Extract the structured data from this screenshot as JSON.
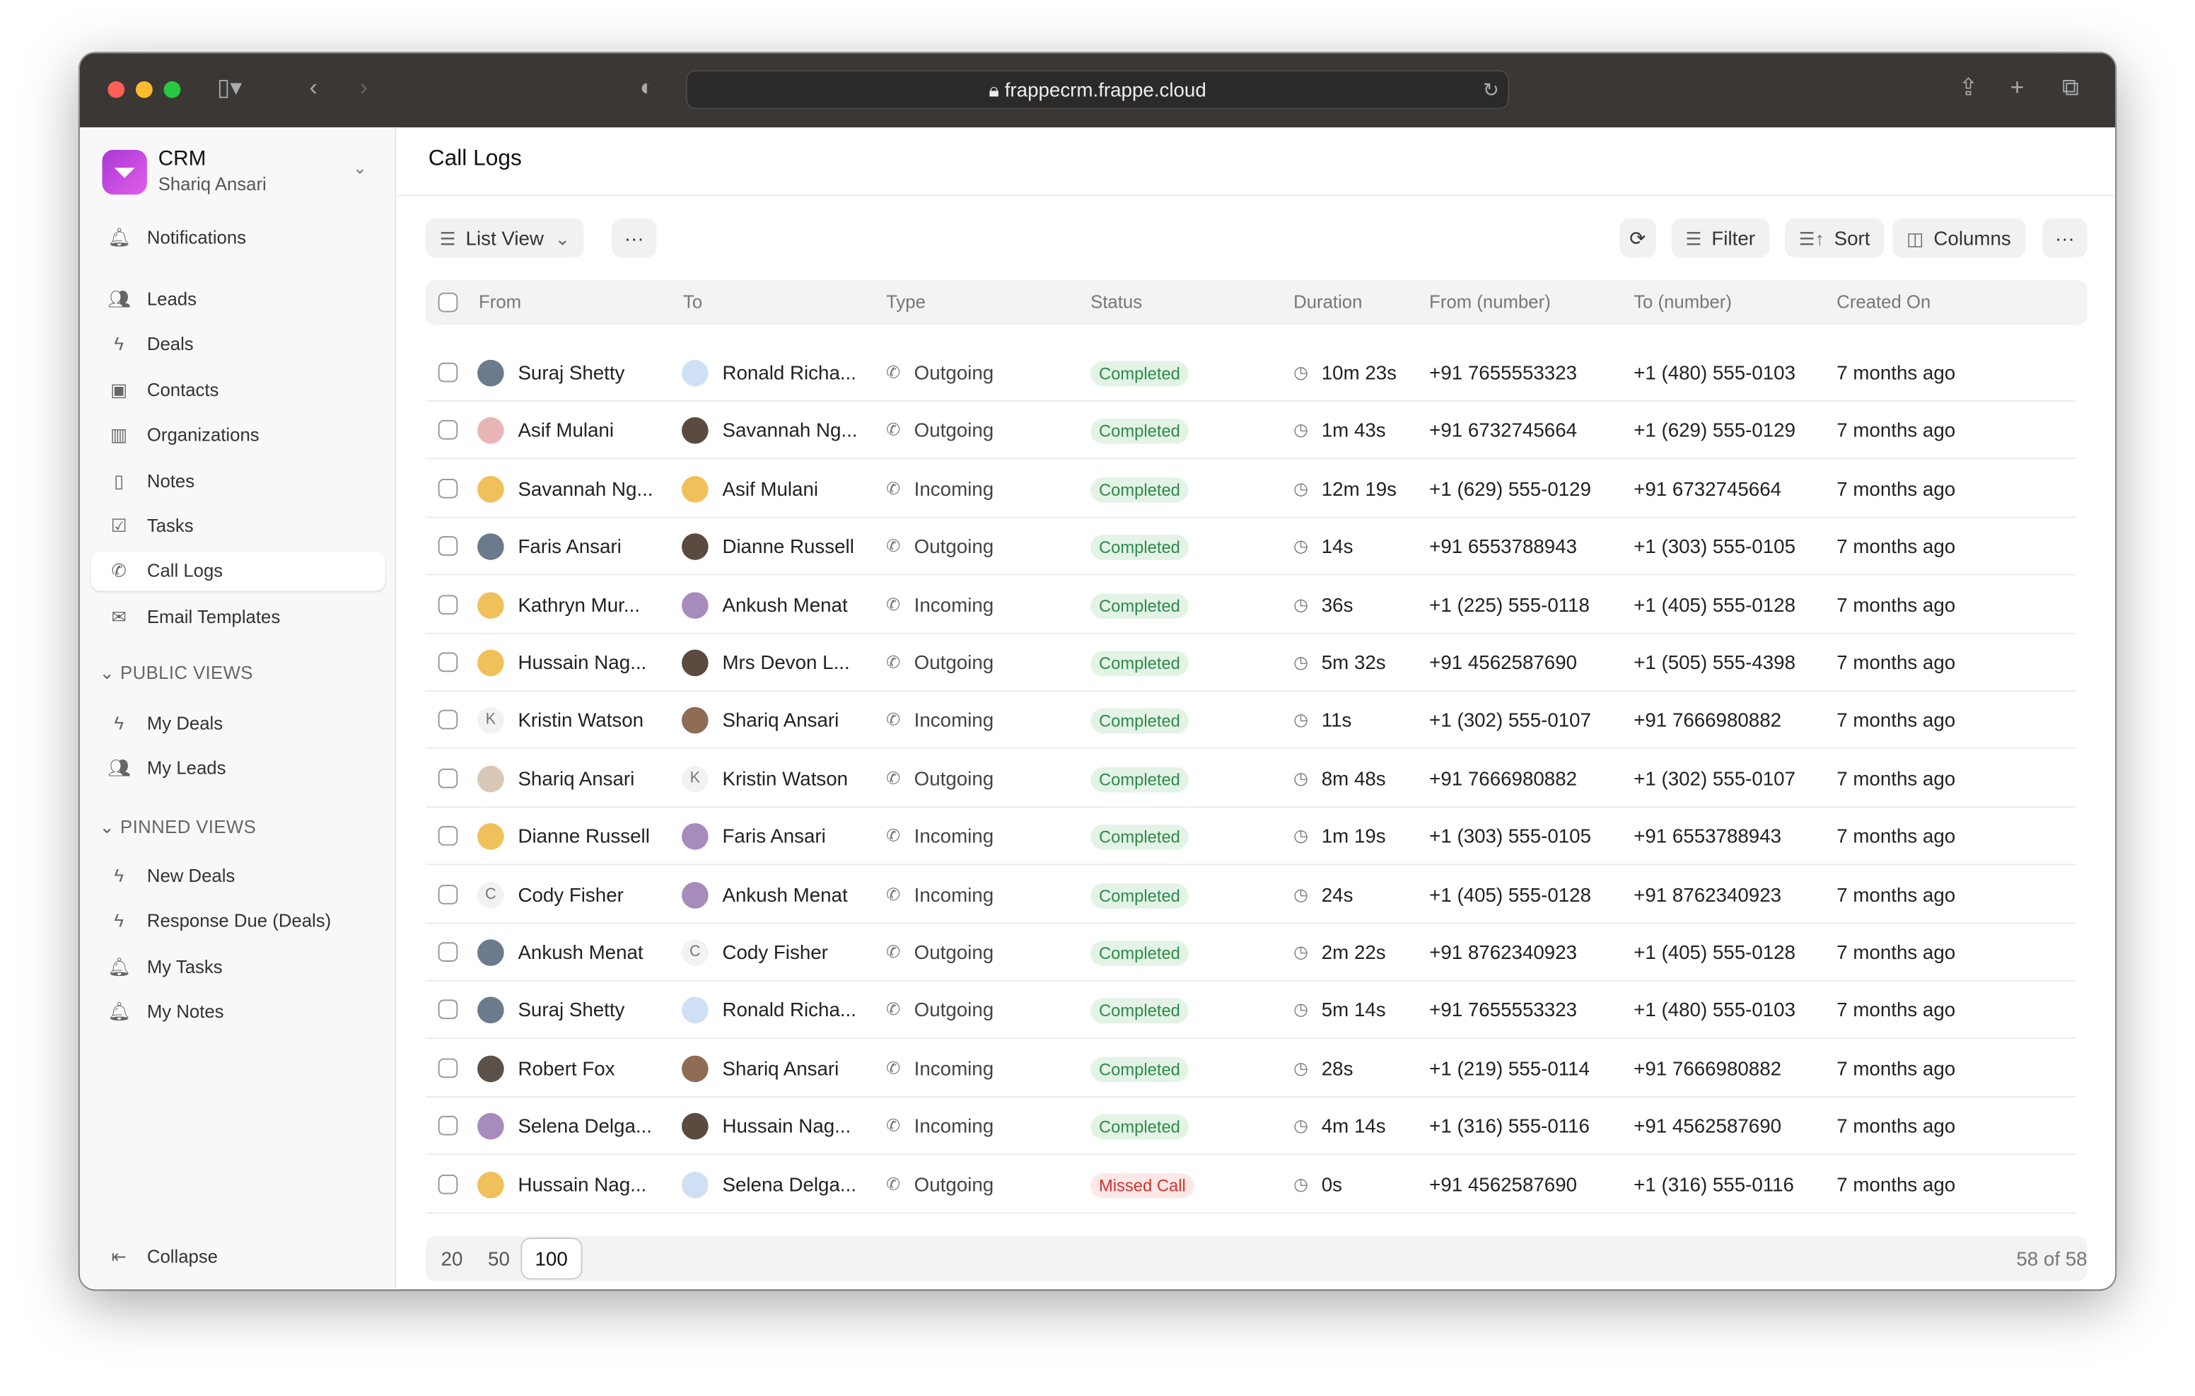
{
  "browser": {
    "url": "frappecrm.frappe.cloud"
  },
  "app": {
    "name": "CRM",
    "user": "Shariq Ansari"
  },
  "sidebar": {
    "top": [
      {
        "label": "Notifications",
        "icon": "bell-icon"
      }
    ],
    "items": [
      {
        "label": "Leads",
        "icon": "users-icon"
      },
      {
        "label": "Deals",
        "icon": "lightning-icon"
      },
      {
        "label": "Contacts",
        "icon": "contact-icon"
      },
      {
        "label": "Organizations",
        "icon": "building-icon"
      },
      {
        "label": "Notes",
        "icon": "note-icon"
      },
      {
        "label": "Tasks",
        "icon": "checkbox-icon"
      },
      {
        "label": "Call Logs",
        "icon": "phone-icon",
        "active": true
      },
      {
        "label": "Email Templates",
        "icon": "mail-icon"
      }
    ],
    "public_views_label": "PUBLIC VIEWS",
    "public_views": [
      {
        "label": "My Deals",
        "icon": "lightning-icon"
      },
      {
        "label": "My Leads",
        "icon": "users-icon"
      }
    ],
    "pinned_views_label": "PINNED VIEWS",
    "pinned_views": [
      {
        "label": "New Deals",
        "icon": "lightning-icon"
      },
      {
        "label": "Response Due (Deals)",
        "icon": "lightning-icon"
      },
      {
        "label": "My Tasks",
        "icon": "bell-icon"
      },
      {
        "label": "My Notes",
        "icon": "bell-icon"
      }
    ],
    "collapse": "Collapse"
  },
  "page": {
    "title": "Call Logs"
  },
  "toolbar": {
    "view": "List View",
    "filter": "Filter",
    "sort": "Sort",
    "columns": "Columns"
  },
  "table": {
    "columns": [
      "From",
      "To",
      "Type",
      "Status",
      "Duration",
      "From (number)",
      "To (number)",
      "Created On"
    ],
    "rows": [
      [
        "Suraj Shetty",
        "Ronald Richa...",
        "Outgoing",
        "Completed",
        "10m 23s",
        "+91 7655553323",
        "+1 (480) 555-0103",
        "7 months ago"
      ],
      [
        "Asif Mulani",
        "Savannah Ng...",
        "Outgoing",
        "Completed",
        "1m 43s",
        "+91 6732745664",
        "+1 (629) 555-0129",
        "7 months ago"
      ],
      [
        "Savannah Ng...",
        "Asif Mulani",
        "Incoming",
        "Completed",
        "12m 19s",
        "+1 (629) 555-0129",
        "+91 6732745664",
        "7 months ago"
      ],
      [
        "Faris Ansari",
        "Dianne Russell",
        "Outgoing",
        "Completed",
        "14s",
        "+91 6553788943",
        "+1 (303) 555-0105",
        "7 months ago"
      ],
      [
        "Kathryn Mur...",
        "Ankush Menat",
        "Incoming",
        "Completed",
        "36s",
        "+1 (225) 555-0118",
        "+1 (405) 555-0128",
        "7 months ago"
      ],
      [
        "Hussain Nag...",
        "Mrs Devon L...",
        "Outgoing",
        "Completed",
        "5m 32s",
        "+91 4562587690",
        "+1 (505) 555-4398",
        "7 months ago"
      ],
      [
        "Kristin Watson",
        "Shariq Ansari",
        "Incoming",
        "Completed",
        "11s",
        "+1 (302) 555-0107",
        "+91 7666980882",
        "7 months ago"
      ],
      [
        "Shariq Ansari",
        "Kristin Watson",
        "Outgoing",
        "Completed",
        "8m 48s",
        "+91 7666980882",
        "+1 (302) 555-0107",
        "7 months ago"
      ],
      [
        "Dianne Russell",
        "Faris Ansari",
        "Incoming",
        "Completed",
        "1m 19s",
        "+1 (303) 555-0105",
        "+91 6553788943",
        "7 months ago"
      ],
      [
        "Cody Fisher",
        "Ankush Menat",
        "Incoming",
        "Completed",
        "24s",
        "+1 (405) 555-0128",
        "+91 8762340923",
        "7 months ago"
      ],
      [
        "Ankush Menat",
        "Cody Fisher",
        "Outgoing",
        "Completed",
        "2m 22s",
        "+91 8762340923",
        "+1 (405) 555-0128",
        "7 months ago"
      ],
      [
        "Suraj Shetty",
        "Ronald Richa...",
        "Outgoing",
        "Completed",
        "5m 14s",
        "+91 7655553323",
        "+1 (480) 555-0103",
        "7 months ago"
      ],
      [
        "Robert Fox",
        "Shariq Ansari",
        "Incoming",
        "Completed",
        "28s",
        "+1 (219) 555-0114",
        "+91 7666980882",
        "7 months ago"
      ],
      [
        "Selena Delga...",
        "Hussain Nag...",
        "Incoming",
        "Completed",
        "4m 14s",
        "+1 (316) 555-0116",
        "+91 4562587690",
        "7 months ago"
      ],
      [
        "Hussain Nag...",
        "Selena Delga...",
        "Outgoing",
        "Missed Call",
        "0s",
        "+91 4562587690",
        "+1 (316) 555-0116",
        "7 months ago"
      ]
    ],
    "letter_avatars": {
      "Kristin Watson": "K",
      "Cody Fisher": "C"
    }
  },
  "pagination": {
    "sizes": [
      "20",
      "50",
      "100"
    ],
    "selected": "100",
    "count": "58 of 58"
  },
  "colors": {
    "completed_bg": "#e3f3e6",
    "completed_fg": "#2e8a4a",
    "missed_bg": "#fde8e8",
    "missed_fg": "#d0342c",
    "logo": "#c94fe0"
  }
}
